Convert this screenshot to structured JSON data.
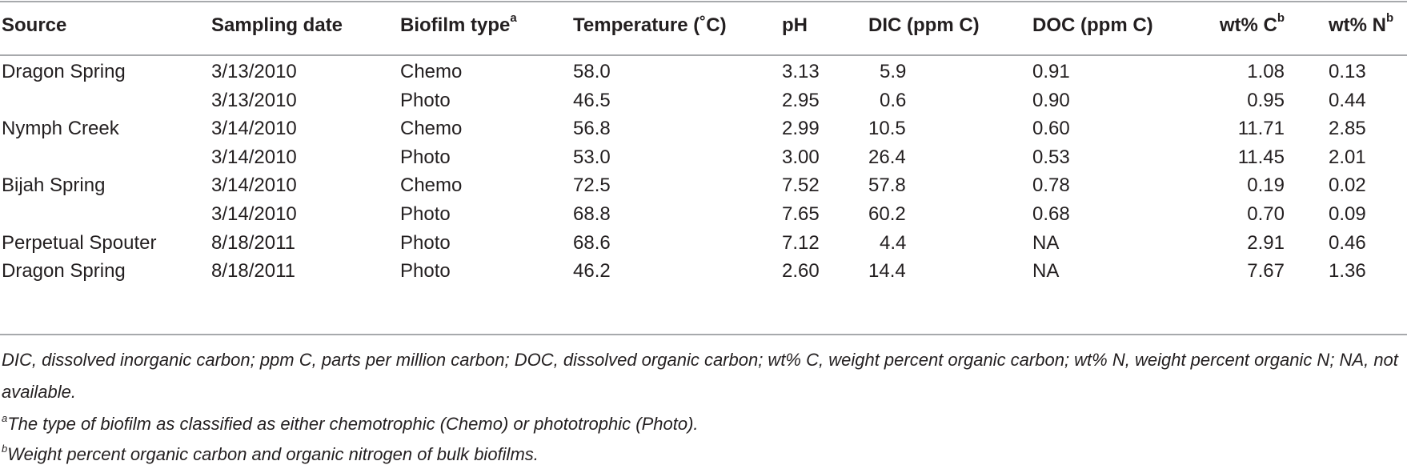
{
  "table": {
    "headers": {
      "source": "Source",
      "sampling_date": "Sampling date",
      "biofilm_type": "Biofilm type",
      "biofilm_type_mark": "a",
      "temperature": "Temperature (˚C)",
      "ph": "pH",
      "dic": "DIC (ppm C)",
      "doc": "DOC (ppm C)",
      "wt_c": "wt% C",
      "wt_c_mark": "b",
      "wt_n": "wt% N",
      "wt_n_mark": "b"
    },
    "rows": [
      {
        "source": "Dragon Spring",
        "date": "3/13/2010",
        "type": "Chemo",
        "temp": "58.0",
        "ph": "3.13",
        "dic": "5.9",
        "doc": "0.91",
        "wt_c": "1.08",
        "wt_n": "0.13"
      },
      {
        "source": "",
        "date": "3/13/2010",
        "type": "Photo",
        "temp": "46.5",
        "ph": "2.95",
        "dic": "0.6",
        "doc": "0.90",
        "wt_c": "0.95",
        "wt_n": "0.44"
      },
      {
        "source": "Nymph Creek",
        "date": "3/14/2010",
        "type": "Chemo",
        "temp": "56.8",
        "ph": "2.99",
        "dic": "10.5",
        "doc": "0.60",
        "wt_c": "11.71",
        "wt_n": "2.85"
      },
      {
        "source": "",
        "date": "3/14/2010",
        "type": "Photo",
        "temp": "53.0",
        "ph": "3.00",
        "dic": "26.4",
        "doc": "0.53",
        "wt_c": "11.45",
        "wt_n": "2.01"
      },
      {
        "source": "Bijah Spring",
        "date": "3/14/2010",
        "type": "Chemo",
        "temp": "72.5",
        "ph": "7.52",
        "dic": "57.8",
        "doc": "0.78",
        "wt_c": "0.19",
        "wt_n": "0.02"
      },
      {
        "source": "",
        "date": "3/14/2010",
        "type": "Photo",
        "temp": "68.8",
        "ph": "7.65",
        "dic": "60.2",
        "doc": "0.68",
        "wt_c": "0.70",
        "wt_n": "0.09"
      },
      {
        "source": "Perpetual Spouter",
        "date": "8/18/2011",
        "type": "Photo",
        "temp": "68.6",
        "ph": "7.12",
        "dic": "4.4",
        "doc": "NA",
        "wt_c": "2.91",
        "wt_n": "0.46"
      },
      {
        "source": "Dragon Spring",
        "date": "8/18/2011",
        "type": "Photo",
        "temp": "46.2",
        "ph": "2.60",
        "dic": "14.4",
        "doc": "NA",
        "wt_c": "7.67",
        "wt_n": "1.36"
      }
    ]
  },
  "footnotes": {
    "abbreviations": "DIC, dissolved inorganic carbon; ppm C, parts per million carbon; DOC, dissolved organic carbon; wt% C, weight percent organic carbon; wt% N, weight percent organic N; NA, not available.",
    "a_mark": "a",
    "a_text": "The type of biofilm as classified as either chemotrophic (Chemo) or phototrophic (Photo).",
    "b_mark": "b",
    "b_text": "Weight percent organic carbon and organic nitrogen of bulk biofilms."
  }
}
